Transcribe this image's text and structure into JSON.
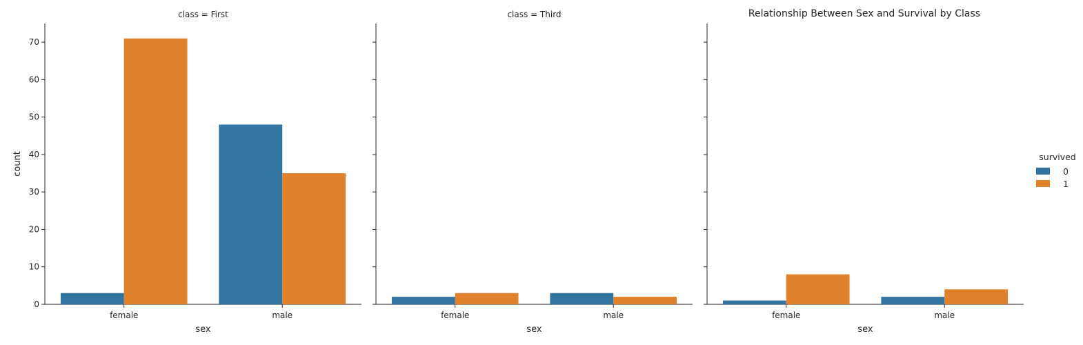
{
  "chart_data": {
    "type": "bar",
    "title": "Relationship Between Sex and Survival by Class",
    "xlabel": "sex",
    "ylabel": "count",
    "categories": [
      "female",
      "male"
    ],
    "ylim": [
      0,
      75
    ],
    "yticks": [
      "0",
      "10",
      "20",
      "30",
      "40",
      "50",
      "60",
      "70"
    ],
    "legend": {
      "title": "survived",
      "placement": "right",
      "entries": [
        "0",
        "1"
      ]
    },
    "colors": {
      "0": "#3274a1",
      "1": "#e1812c"
    },
    "grid": false,
    "panels": [
      {
        "title": "class = First",
        "series": [
          {
            "name": "0",
            "values": [
              3,
              48
            ]
          },
          {
            "name": "1",
            "values": [
              71,
              35
            ]
          }
        ]
      },
      {
        "title": "class = Third",
        "series": [
          {
            "name": "0",
            "values": [
              2,
              3
            ]
          },
          {
            "name": "1",
            "values": [
              3,
              2
            ]
          }
        ]
      },
      {
        "title": "",
        "series": [
          {
            "name": "0",
            "values": [
              1,
              2
            ]
          },
          {
            "name": "1",
            "values": [
              8,
              4
            ]
          }
        ]
      }
    ]
  }
}
